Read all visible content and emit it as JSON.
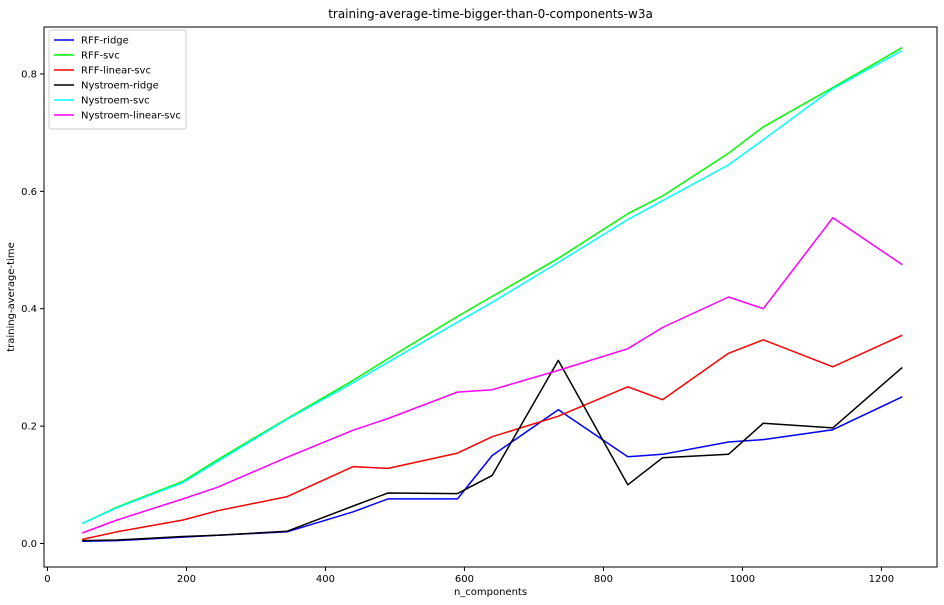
{
  "chart_data": {
    "type": "line",
    "title": "training-average-time-bigger-than-0-components-w3a",
    "xlabel": "n_components",
    "ylabel": "training-average-time",
    "xlim": [
      -5,
      1280
    ],
    "ylim": [
      -0.04,
      0.88
    ],
    "xticks": [
      0,
      200,
      400,
      600,
      800,
      1000,
      1200
    ],
    "yticks": [
      0.0,
      0.2,
      0.4,
      0.6,
      0.8
    ],
    "grid": false,
    "legend_position": "top-left",
    "x": [
      50,
      100,
      195,
      245,
      345,
      440,
      490,
      590,
      640,
      735,
      835,
      885,
      980,
      1030,
      1130,
      1230
    ],
    "series": [
      {
        "name": "RFF-ridge",
        "color": "#0000ff",
        "values": [
          0.004,
          0.005,
          0.011,
          0.014,
          0.02,
          0.054,
          0.076,
          0.076,
          0.15,
          0.228,
          0.148,
          0.152,
          0.173,
          0.177,
          0.194,
          0.25
        ]
      },
      {
        "name": "RFF-svc",
        "color": "#00ff00",
        "values": [
          0.034,
          0.062,
          0.106,
          0.143,
          0.213,
          0.278,
          0.315,
          0.387,
          0.421,
          0.486,
          0.562,
          0.592,
          0.665,
          0.71,
          0.777,
          0.845
        ]
      },
      {
        "name": "RFF-linear-svc",
        "color": "#ff0000",
        "values": [
          0.007,
          0.02,
          0.04,
          0.056,
          0.08,
          0.131,
          0.128,
          0.154,
          0.182,
          0.217,
          0.267,
          0.245,
          0.324,
          0.347,
          0.301,
          0.355
        ]
      },
      {
        "name": "Nystroem-ridge",
        "color": "#000000",
        "values": [
          0.005,
          0.006,
          0.012,
          0.014,
          0.021,
          0.064,
          0.086,
          0.085,
          0.116,
          0.312,
          0.1,
          0.146,
          0.152,
          0.205,
          0.197,
          0.3
        ]
      },
      {
        "name": "Nystroem-svc",
        "color": "#00ffff",
        "values": [
          0.034,
          0.061,
          0.104,
          0.14,
          0.212,
          0.274,
          0.309,
          0.377,
          0.411,
          0.479,
          0.552,
          0.584,
          0.645,
          0.688,
          0.775,
          0.84
        ]
      },
      {
        "name": "Nystroem-linear-svc",
        "color": "#ff00ff",
        "values": [
          0.018,
          0.04,
          0.076,
          0.096,
          0.147,
          0.193,
          0.213,
          0.258,
          0.262,
          0.295,
          0.332,
          0.368,
          0.42,
          0.4,
          0.555,
          0.475
        ]
      }
    ]
  }
}
